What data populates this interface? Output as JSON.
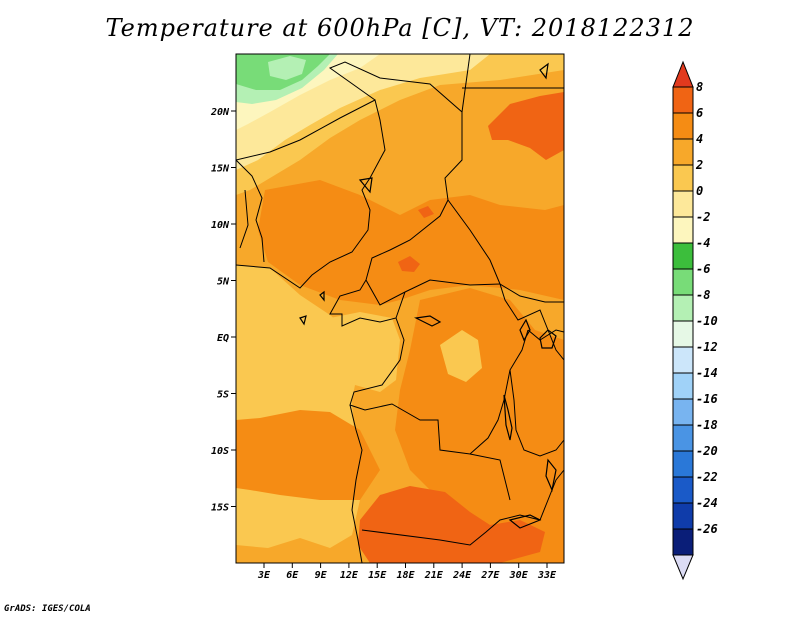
{
  "title": "Temperature at 600hPa [C], VT: 2018122312",
  "credit": "GrADS: IGES/COLA",
  "map": {
    "lat_labels": [
      "20N",
      "15N",
      "10N",
      "5N",
      "EQ",
      "5S",
      "10S",
      "15S"
    ],
    "lon_labels": [
      "3E",
      "6E",
      "9E",
      "12E",
      "15E",
      "18E",
      "21E",
      "24E",
      "27E",
      "30E",
      "33E"
    ]
  },
  "colorbar": {
    "labels": [
      "8",
      "6",
      "4",
      "2",
      "0",
      "-2",
      "-4",
      "-6",
      "-8",
      "-10",
      "-12",
      "-14",
      "-16",
      "-18",
      "-20",
      "-22",
      "-24",
      "-26"
    ],
    "colors": [
      "#e23a1e",
      "#f06414",
      "#f58c14",
      "#f7a82a",
      "#fac850",
      "#fde89a",
      "#fdf6be",
      "#3cbe3c",
      "#78dc78",
      "#b4f0b4",
      "#e6f8e6",
      "#cce6fa",
      "#a0d2f8",
      "#78b4f0",
      "#4a94e4",
      "#2a78d8",
      "#1a5ac8",
      "#0f3caa",
      "#0a1e78"
    ],
    "cap_bottom_color": "#dcdcf5"
  }
}
